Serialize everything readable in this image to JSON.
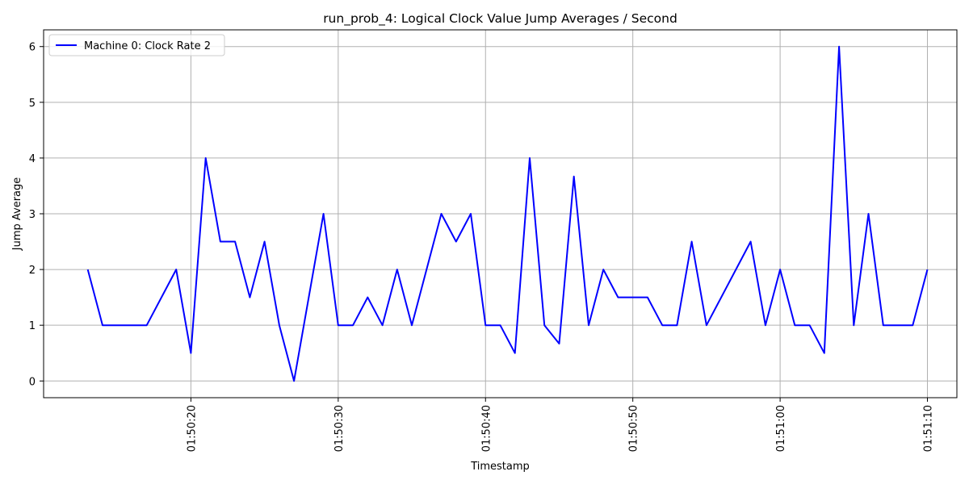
{
  "chart_data": {
    "type": "line",
    "title": "run_prob_4: Logical Clock Value Jump Averages / Second",
    "xlabel": "Timestamp",
    "ylabel": "Jump Average",
    "x_format": "HH:MM:SS",
    "xlim": [
      "01:50:10",
      "01:51:12"
    ],
    "ylim": [
      -0.3,
      6.3
    ],
    "x_ticks": [
      "01:50:20",
      "01:50:30",
      "01:50:40",
      "01:50:50",
      "01:51:00",
      "01:51:10"
    ],
    "y_ticks": [
      0,
      1,
      2,
      3,
      4,
      5,
      6
    ],
    "grid": true,
    "legend_position": "top-left",
    "series": [
      {
        "name": "Machine 0: Clock Rate 2",
        "color": "#0000ff",
        "points": [
          [
            "01:50:13",
            2
          ],
          [
            "01:50:14",
            1
          ],
          [
            "01:50:15",
            1
          ],
          [
            "01:50:16",
            1
          ],
          [
            "01:50:17",
            1
          ],
          [
            "01:50:19",
            2
          ],
          [
            "01:50:20",
            0.5
          ],
          [
            "01:50:21",
            4
          ],
          [
            "01:50:22",
            2.5
          ],
          [
            "01:50:23",
            2.5
          ],
          [
            "01:50:24",
            1.5
          ],
          [
            "01:50:25",
            2.5
          ],
          [
            "01:50:26",
            1
          ],
          [
            "01:50:27",
            0
          ],
          [
            "01:50:29",
            3
          ],
          [
            "01:50:30",
            1
          ],
          [
            "01:50:31",
            1
          ],
          [
            "01:50:32",
            1.5
          ],
          [
            "01:50:33",
            1
          ],
          [
            "01:50:34",
            2
          ],
          [
            "01:50:35",
            1
          ],
          [
            "01:50:37",
            3
          ],
          [
            "01:50:38",
            2.5
          ],
          [
            "01:50:39",
            3
          ],
          [
            "01:50:40",
            1
          ],
          [
            "01:50:41",
            1
          ],
          [
            "01:50:42",
            0.5
          ],
          [
            "01:50:43",
            4
          ],
          [
            "01:50:44",
            1
          ],
          [
            "01:50:45",
            0.67
          ],
          [
            "01:50:46",
            3.67
          ],
          [
            "01:50:47",
            1
          ],
          [
            "01:50:48",
            2
          ],
          [
            "01:50:49",
            1.5
          ],
          [
            "01:50:50",
            1.5
          ],
          [
            "01:50:51",
            1.5
          ],
          [
            "01:50:52",
            1
          ],
          [
            "01:50:53",
            1
          ],
          [
            "01:50:54",
            2.5
          ],
          [
            "01:50:55",
            1
          ],
          [
            "01:50:58",
            2.5
          ],
          [
            "01:50:59",
            1
          ],
          [
            "01:51:00",
            2
          ],
          [
            "01:51:01",
            1
          ],
          [
            "01:51:02",
            1
          ],
          [
            "01:51:03",
            0.5
          ],
          [
            "01:51:04",
            6
          ],
          [
            "01:51:05",
            1
          ],
          [
            "01:51:06",
            3
          ],
          [
            "01:51:07",
            1
          ],
          [
            "01:51:08",
            1
          ],
          [
            "01:51:09",
            1
          ],
          [
            "01:51:10",
            2
          ]
        ]
      }
    ]
  }
}
